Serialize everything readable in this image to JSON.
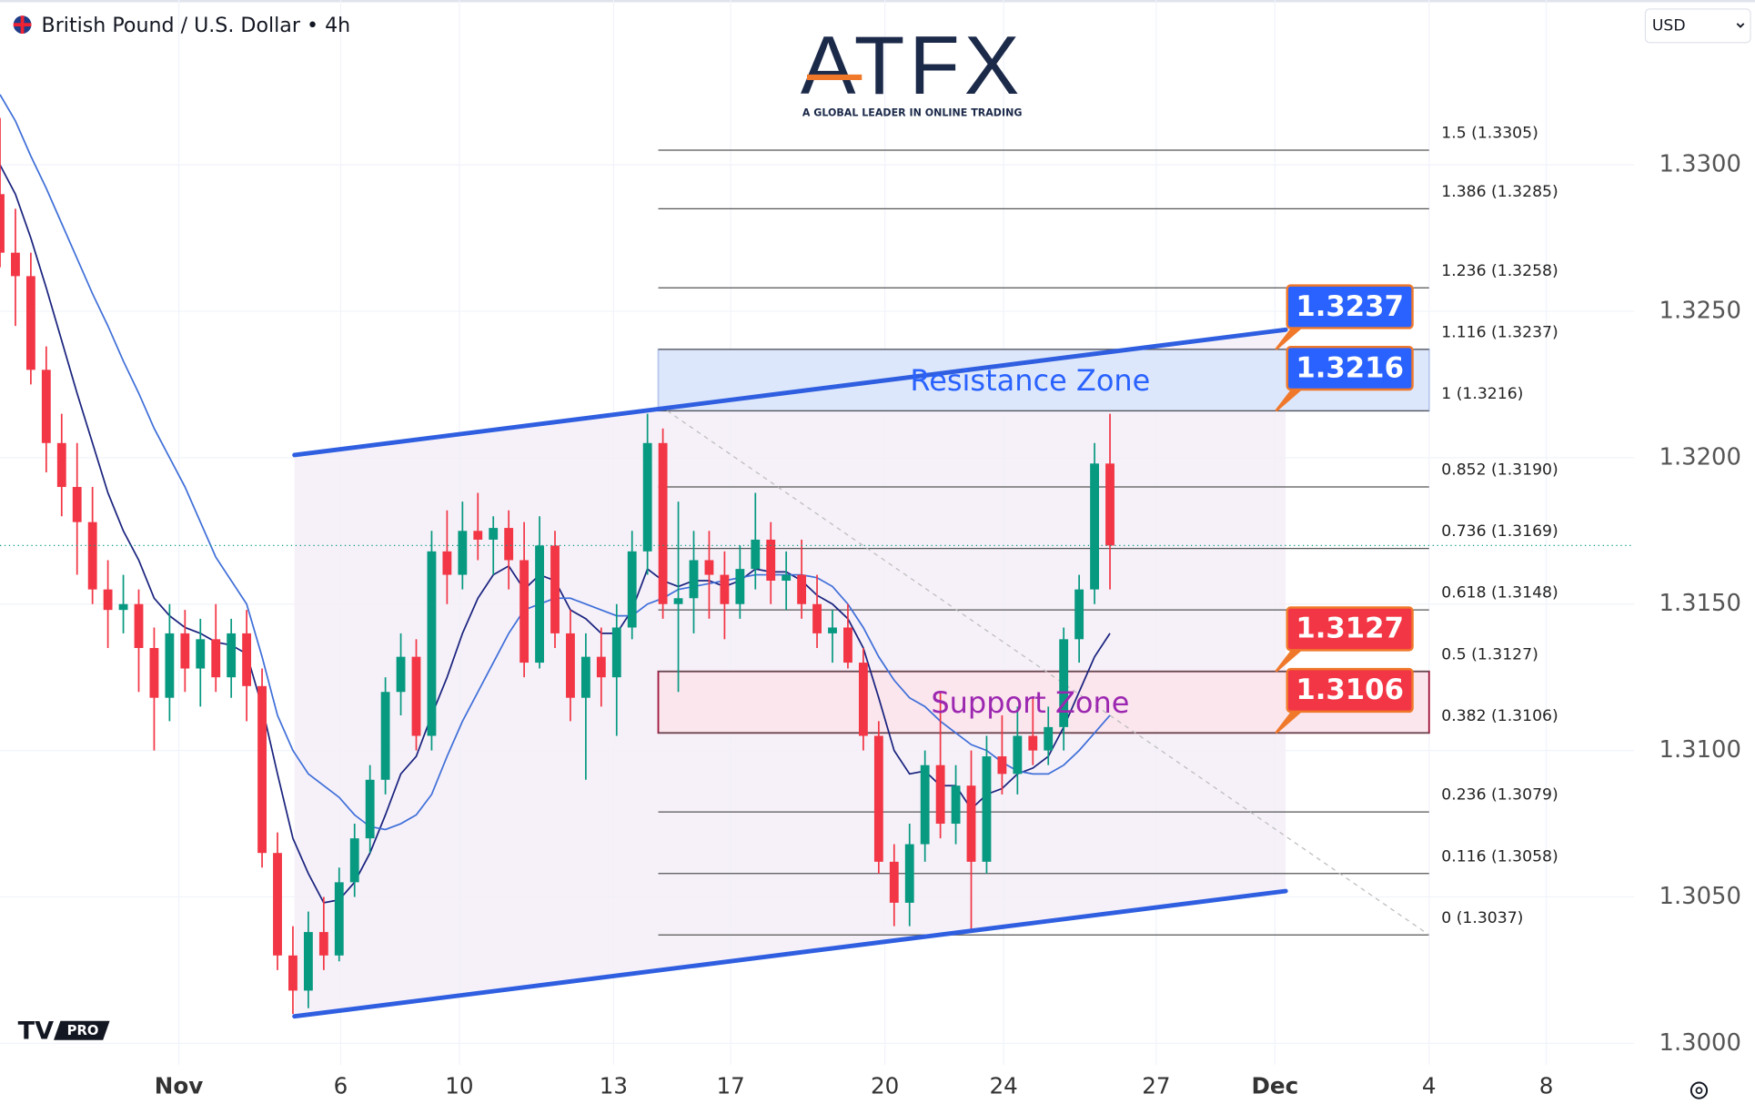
{
  "header": {
    "symbol": "British Pound / U.S. Dollar • 4h",
    "currency": "USD"
  },
  "logo": {
    "name": "ATFX",
    "tagline": "A GLOBAL LEADER IN ONLINE TRADING"
  },
  "badge": "PRO",
  "chart_data": {
    "type": "candlestick",
    "colors": {
      "up": "#089981",
      "down": "#f23645"
    },
    "xlim": [
      0,
      106
    ],
    "ylim": [
      1.29927,
      1.33563
    ],
    "yticks": [
      {
        "value": 1.3,
        "label": "1.3000"
      },
      {
        "value": 1.305,
        "label": "1.3050"
      },
      {
        "value": 1.31,
        "label": "1.3100"
      },
      {
        "value": 1.315,
        "label": "1.3150"
      },
      {
        "value": 1.32,
        "label": "1.3200"
      },
      {
        "value": 1.325,
        "label": "1.3250"
      },
      {
        "value": 1.33,
        "label": "1.3300"
      }
    ],
    "xticks": [
      {
        "value": 11.6,
        "label": "Nov"
      },
      {
        "value": 22.1,
        "label": "6"
      },
      {
        "value": 29.8,
        "label": "10"
      },
      {
        "value": 39.8,
        "label": "13"
      },
      {
        "value": 47.4,
        "label": "17"
      },
      {
        "value": 57.4,
        "label": "20"
      },
      {
        "value": 65.1,
        "label": "24"
      },
      {
        "value": 75.0,
        "label": "27"
      },
      {
        "value": 82.7,
        "label": "Dec"
      },
      {
        "value": 92.7,
        "label": "4"
      },
      {
        "value": 100.3,
        "label": "8"
      }
    ],
    "ohlc": [
      [
        1.329,
        1.3316,
        1.3265,
        1.327
      ],
      [
        1.327,
        1.3285,
        1.3245,
        1.3262
      ],
      [
        1.3262,
        1.327,
        1.3225,
        1.323
      ],
      [
        1.323,
        1.3238,
        1.3195,
        1.3205
      ],
      [
        1.3205,
        1.3215,
        1.318,
        1.319
      ],
      [
        1.319,
        1.3205,
        1.316,
        1.3178
      ],
      [
        1.3178,
        1.319,
        1.315,
        1.3155
      ],
      [
        1.3155,
        1.3165,
        1.3135,
        1.3148
      ],
      [
        1.3148,
        1.316,
        1.314,
        1.315
      ],
      [
        1.315,
        1.3155,
        1.312,
        1.3135
      ],
      [
        1.3135,
        1.3142,
        1.31,
        1.3118
      ],
      [
        1.3118,
        1.315,
        1.311,
        1.314
      ],
      [
        1.314,
        1.3148,
        1.312,
        1.3128
      ],
      [
        1.3128,
        1.3145,
        1.3115,
        1.3138
      ],
      [
        1.3138,
        1.315,
        1.312,
        1.3125
      ],
      [
        1.3125,
        1.3145,
        1.3118,
        1.314
      ],
      [
        1.314,
        1.3148,
        1.311,
        1.3122
      ],
      [
        1.3122,
        1.3128,
        1.306,
        1.3065
      ],
      [
        1.3065,
        1.3072,
        1.3025,
        1.303
      ],
      [
        1.303,
        1.304,
        1.301,
        1.3018
      ],
      [
        1.3018,
        1.3045,
        1.3012,
        1.3038
      ],
      [
        1.3038,
        1.305,
        1.3025,
        1.303
      ],
      [
        1.303,
        1.306,
        1.3028,
        1.3055
      ],
      [
        1.3055,
        1.3075,
        1.305,
        1.307
      ],
      [
        1.307,
        1.3095,
        1.3065,
        1.309
      ],
      [
        1.309,
        1.3125,
        1.3085,
        1.312
      ],
      [
        1.312,
        1.314,
        1.3112,
        1.3132
      ],
      [
        1.3132,
        1.3138,
        1.31,
        1.3105
      ],
      [
        1.3105,
        1.3175,
        1.31,
        1.3168
      ],
      [
        1.3168,
        1.3182,
        1.315,
        1.316
      ],
      [
        1.316,
        1.3185,
        1.3155,
        1.3175
      ],
      [
        1.3175,
        1.3188,
        1.3165,
        1.3172
      ],
      [
        1.3172,
        1.318,
        1.316,
        1.3176
      ],
      [
        1.3176,
        1.3182,
        1.3155,
        1.3165
      ],
      [
        1.3165,
        1.3178,
        1.3125,
        1.313
      ],
      [
        1.313,
        1.318,
        1.3128,
        1.317
      ],
      [
        1.317,
        1.3175,
        1.3135,
        1.314
      ],
      [
        1.314,
        1.3148,
        1.311,
        1.3118
      ],
      [
        1.3118,
        1.314,
        1.309,
        1.3132
      ],
      [
        1.3132,
        1.3142,
        1.3115,
        1.3125
      ],
      [
        1.3125,
        1.315,
        1.3105,
        1.3142
      ],
      [
        1.3142,
        1.3175,
        1.3138,
        1.3168
      ],
      [
        1.3168,
        1.3215,
        1.316,
        1.3205
      ],
      [
        1.3205,
        1.321,
        1.3145,
        1.315
      ],
      [
        1.315,
        1.3185,
        1.312,
        1.3152
      ],
      [
        1.3152,
        1.3175,
        1.314,
        1.3165
      ],
      [
        1.3165,
        1.3175,
        1.3145,
        1.316
      ],
      [
        1.316,
        1.3168,
        1.3138,
        1.315
      ],
      [
        1.315,
        1.317,
        1.3145,
        1.3162
      ],
      [
        1.3162,
        1.3188,
        1.3155,
        1.3172
      ],
      [
        1.3172,
        1.3178,
        1.315,
        1.3158
      ],
      [
        1.3158,
        1.3168,
        1.3148,
        1.316
      ],
      [
        1.316,
        1.3172,
        1.3145,
        1.315
      ],
      [
        1.315,
        1.316,
        1.3135,
        1.314
      ],
      [
        1.314,
        1.3148,
        1.313,
        1.3142
      ],
      [
        1.3142,
        1.315,
        1.3128,
        1.313
      ],
      [
        1.313,
        1.3135,
        1.31,
        1.3105
      ],
      [
        1.3105,
        1.311,
        1.3058,
        1.3062
      ],
      [
        1.3062,
        1.3068,
        1.304,
        1.3048
      ],
      [
        1.3048,
        1.3075,
        1.304,
        1.3068
      ],
      [
        1.3068,
        1.31,
        1.3062,
        1.3095
      ],
      [
        1.3095,
        1.312,
        1.307,
        1.3075
      ],
      [
        1.3075,
        1.3095,
        1.3068,
        1.3088
      ],
      [
        1.3088,
        1.31,
        1.3038,
        1.3062
      ],
      [
        1.3062,
        1.3105,
        1.3058,
        1.3098
      ],
      [
        1.3098,
        1.3112,
        1.3085,
        1.3092
      ],
      [
        1.3092,
        1.3115,
        1.3085,
        1.3105
      ],
      [
        1.3105,
        1.3118,
        1.3095,
        1.31
      ],
      [
        1.31,
        1.3115,
        1.3095,
        1.3108
      ],
      [
        1.3108,
        1.3142,
        1.31,
        1.3138
      ],
      [
        1.3138,
        1.316,
        1.313,
        1.3155
      ],
      [
        1.3155,
        1.3205,
        1.315,
        1.3198
      ],
      [
        1.3198,
        1.3215,
        1.3155,
        1.317
      ]
    ],
    "moving_averages": [
      {
        "color": "#1a237e",
        "values": [
          1.33,
          1.329,
          1.3275,
          1.3258,
          1.324,
          1.3222,
          1.3205,
          1.3188,
          1.3175,
          1.3165,
          1.3152,
          1.3146,
          1.3142,
          1.314,
          1.3137,
          1.3136,
          1.3133,
          1.3115,
          1.3092,
          1.307,
          1.3058,
          1.3048,
          1.3049,
          1.3055,
          1.3065,
          1.3078,
          1.3092,
          1.3098,
          1.3112,
          1.3125,
          1.314,
          1.3152,
          1.316,
          1.3163,
          1.3155,
          1.316,
          1.3158,
          1.3148,
          1.3145,
          1.314,
          1.314,
          1.3148,
          1.3162,
          1.3158,
          1.3156,
          1.3158,
          1.3158,
          1.3156,
          1.3158,
          1.3162,
          1.3161,
          1.3161,
          1.3158,
          1.3153,
          1.315,
          1.3145,
          1.3135,
          1.3118,
          1.31,
          1.3092,
          1.3093,
          1.3088,
          1.3088,
          1.308,
          1.3085,
          1.3087,
          1.3092,
          1.3094,
          1.3098,
          1.3108,
          1.312,
          1.3132,
          1.314
        ]
      },
      {
        "color": "#3f6fd8",
        "values": [
          1.3324,
          1.3315,
          1.3303,
          1.3292,
          1.328,
          1.3268,
          1.3256,
          1.3245,
          1.3233,
          1.3222,
          1.321,
          1.32,
          1.319,
          1.3178,
          1.3166,
          1.3158,
          1.315,
          1.3132,
          1.3112,
          1.31,
          1.3092,
          1.3088,
          1.3084,
          1.3078,
          1.3074,
          1.3073,
          1.3075,
          1.3078,
          1.3085,
          1.3098,
          1.311,
          1.312,
          1.313,
          1.314,
          1.3148,
          1.315,
          1.3152,
          1.3152,
          1.315,
          1.3148,
          1.3146,
          1.3146,
          1.315,
          1.3152,
          1.3155,
          1.3156,
          1.3157,
          1.3158,
          1.3159,
          1.316,
          1.316,
          1.316,
          1.316,
          1.3159,
          1.3156,
          1.315,
          1.3142,
          1.3132,
          1.3124,
          1.3118,
          1.3115,
          1.311,
          1.3106,
          1.3102,
          1.31,
          1.3096,
          1.3093,
          1.3092,
          1.3092,
          1.3095,
          1.31,
          1.3106,
          1.3112
        ]
      }
    ],
    "channel": {
      "color": "#2f5fe0",
      "upper": {
        "x": [
          19.1,
          83.4
        ],
        "y": [
          1.32009,
          1.32437
        ]
      },
      "lower": {
        "x": [
          19.1,
          83.4
        ],
        "y": [
          1.30092,
          1.3052
        ]
      }
    },
    "fib_x": [
      42.7,
      92.7
    ],
    "fib_levels": [
      {
        "label": "1.5 (1.3305)",
        "value": 1.3305
      },
      {
        "label": "1.386 (1.3285)",
        "value": 1.3285
      },
      {
        "label": "1.236 (1.3258)",
        "value": 1.3258
      },
      {
        "label": "1.116 (1.3237)",
        "value": 1.3237
      },
      {
        "label": "1 (1.3216)",
        "value": 1.3216
      },
      {
        "label": "0.852 (1.3190)",
        "value": 1.319
      },
      {
        "label": "0.736 (1.3169)",
        "value": 1.3169
      },
      {
        "label": "0.618 (1.3148)",
        "value": 1.3148
      },
      {
        "label": "0.5 (1.3127)",
        "value": 1.3127
      },
      {
        "label": "0.382 (1.3106)",
        "value": 1.3106
      },
      {
        "label": "0.236 (1.3079)",
        "value": 1.3079
      },
      {
        "label": "0.116 (1.3058)",
        "value": 1.3058
      },
      {
        "label": "0 (1.3037)",
        "value": 1.3037
      }
    ],
    "resistance_zone": {
      "label": "Resistance Zone",
      "range": [
        1.3216,
        1.3237
      ]
    },
    "support_zone": {
      "label": "Support Zone",
      "range": [
        1.3106,
        1.3127
      ]
    },
    "price_callouts": [
      {
        "value": 1.3237,
        "color": "#2962ff"
      },
      {
        "value": 1.3216,
        "color": "#2962ff"
      },
      {
        "value": 1.3127,
        "color": "#f23645"
      },
      {
        "value": 1.3106,
        "color": "#f23645"
      }
    ]
  }
}
